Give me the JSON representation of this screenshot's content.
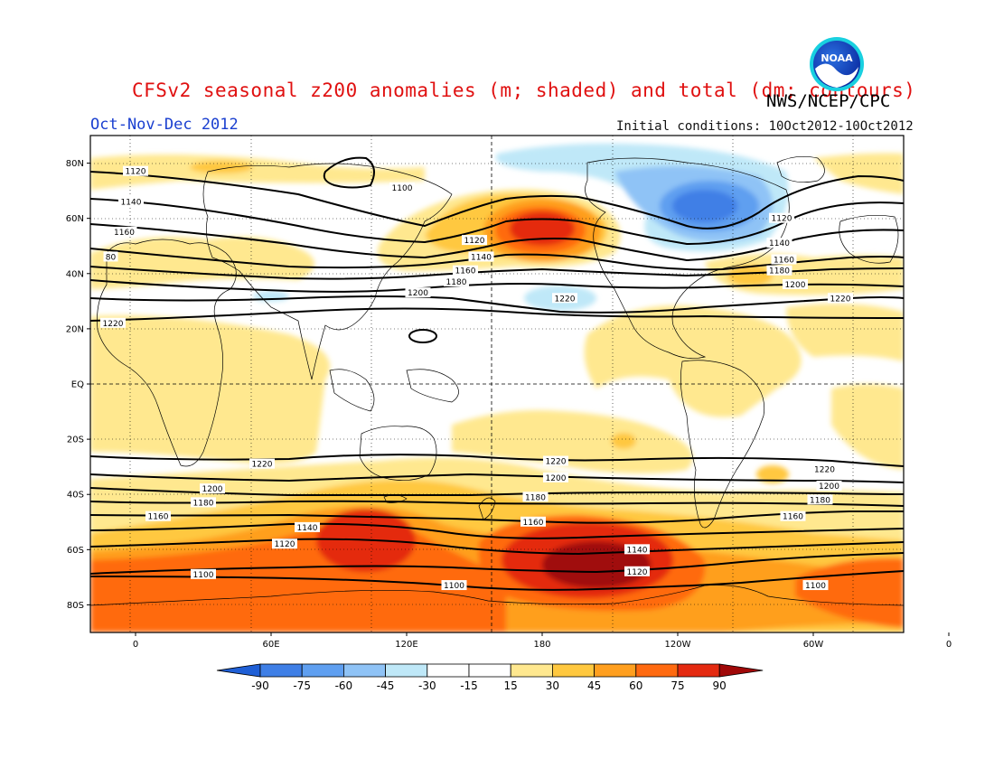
{
  "header": {
    "title": "CFSv2 seasonal z200 anomalies (m; shaded) and total (dm; contours)",
    "agency": "NWS/NCEP/CPC",
    "period": "Oct-Nov-Dec 2012",
    "initial_conditions": "Initial conditions: 10Oct2012-10Oct2012",
    "logo_text": "NOAA"
  },
  "colors": {
    "neg90": "#1f5fd6",
    "neg75": "#3f7fe6",
    "neg60": "#5f9ff0",
    "neg45": "#8fc3f6",
    "neg30": "#bfe8f8",
    "neutral": "#ffffff",
    "pos15": "#ffe88f",
    "pos30": "#ffc83f",
    "pos45": "#ff9f1f",
    "pos60": "#ff6a10",
    "pos75": "#e42a10",
    "pos90": "#a00808"
  },
  "map": {
    "y_ticks": [
      "80N",
      "60N",
      "40N",
      "20N",
      "EQ",
      "20S",
      "40S",
      "60S",
      "80S"
    ],
    "x_ticks": [
      "0",
      "60E",
      "120E",
      "180",
      "120W",
      "60W",
      "0"
    ]
  },
  "colorbar": {
    "levels": [
      "-90",
      "-75",
      "-60",
      "-45",
      "-30",
      "-15",
      "15",
      "30",
      "45",
      "60",
      "75",
      "90"
    ]
  },
  "contours": {
    "labels": [
      {
        "text": "1100",
        "lon": 118,
        "lat": 71
      },
      {
        "text": "1120",
        "lon": 0,
        "lat": 77
      },
      {
        "text": "1140",
        "lon": -2,
        "lat": 66
      },
      {
        "text": "1160",
        "lon": -5,
        "lat": 55
      },
      {
        "text": "80",
        "lon": -11,
        "lat": 46
      },
      {
        "text": "1120",
        "lon": 150,
        "lat": 52
      },
      {
        "text": "1140",
        "lon": 153,
        "lat": 46
      },
      {
        "text": "1160",
        "lon": 146,
        "lat": 41
      },
      {
        "text": "1180",
        "lon": 142,
        "lat": 37
      },
      {
        "text": "1200",
        "lon": 125,
        "lat": 33
      },
      {
        "text": "1220",
        "lon": 190,
        "lat": 31
      },
      {
        "text": "1220",
        "lon": -10,
        "lat": 22
      },
      {
        "text": "1120",
        "lon": 286,
        "lat": 60
      },
      {
        "text": "1140",
        "lon": 285,
        "lat": 51
      },
      {
        "text": "1160",
        "lon": 287,
        "lat": 45
      },
      {
        "text": "1180",
        "lon": 285,
        "lat": 41
      },
      {
        "text": "1200",
        "lon": 292,
        "lat": 36
      },
      {
        "text": "1220",
        "lon": 312,
        "lat": 31
      },
      {
        "text": "1220",
        "lon": 56,
        "lat": -29
      },
      {
        "text": "1200",
        "lon": 34,
        "lat": -38
      },
      {
        "text": "1180",
        "lon": 30,
        "lat": -43
      },
      {
        "text": "1160",
        "lon": 10,
        "lat": -48
      },
      {
        "text": "1140",
        "lon": 76,
        "lat": -52
      },
      {
        "text": "1120",
        "lon": 66,
        "lat": -58
      },
      {
        "text": "1100",
        "lon": 30,
        "lat": -69
      },
      {
        "text": "1100",
        "lon": 141,
        "lat": -73
      },
      {
        "text": "1220",
        "lon": 186,
        "lat": -28
      },
      {
        "text": "1200",
        "lon": 186,
        "lat": -34
      },
      {
        "text": "1180",
        "lon": 177,
        "lat": -41
      },
      {
        "text": "1160",
        "lon": 176,
        "lat": -50
      },
      {
        "text": "1140",
        "lon": 222,
        "lat": -60
      },
      {
        "text": "1120",
        "lon": 222,
        "lat": -68
      },
      {
        "text": "1220",
        "lon": 305,
        "lat": -31
      },
      {
        "text": "1200",
        "lon": 307,
        "lat": -37
      },
      {
        "text": "1180",
        "lon": 303,
        "lat": -42
      },
      {
        "text": "1160",
        "lon": 291,
        "lat": -48
      },
      {
        "text": "1100",
        "lon": 301,
        "lat": -73
      }
    ]
  }
}
